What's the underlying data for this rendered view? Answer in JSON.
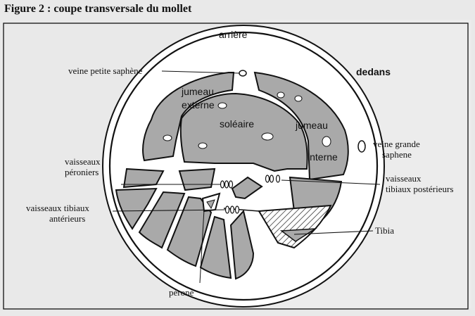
{
  "figure": {
    "title": "Figure 2 : coupe transversale du mollet"
  },
  "labels": {
    "arriere": "arrière",
    "dedans": "dedans",
    "veine_petite_saphene": "veine petite saphène",
    "jumeau_externe_1": "jumeau",
    "jumeau_externe_2": "externe",
    "soleaire": "soléaire",
    "jumeau_interne_1": "jumeau",
    "jumeau_interne_2": "interne",
    "veine_grande_saphene_1": "veine grande",
    "veine_grande_saphene_2": "saphene",
    "vaisseaux_peroniers_1": "vaisseaux",
    "vaisseaux_peroniers_2": "péroniers",
    "vaisseaux_tibiaux_post_1": "vaisseaux",
    "vaisseaux_tibiaux_post_2": "tibiaux postérieurs",
    "vaisseaux_tibiaux_ant_1": "vaisseaux tibiaux",
    "vaisseaux_tibiaux_ant_2": "antérieurs",
    "tibia": "Tibia",
    "perone": "péroné"
  },
  "colors": {
    "page_background": "#e9e9e9",
    "muscle_fill": "#a9a9a9",
    "outline": "#111111",
    "skin_fill": "#ffffff"
  }
}
